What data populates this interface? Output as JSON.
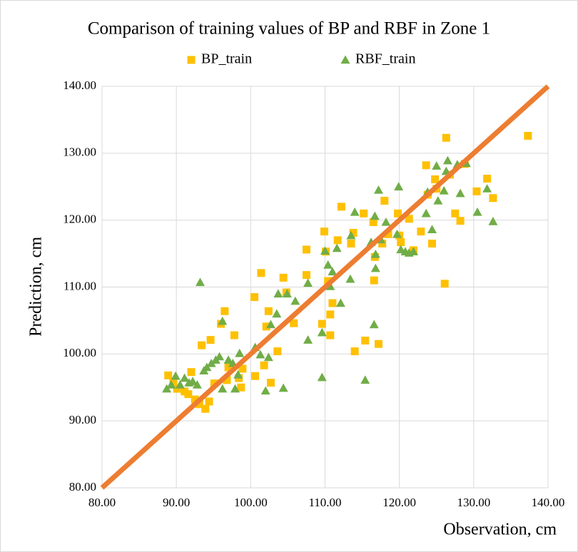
{
  "chart_data": {
    "type": "scatter",
    "title": "Comparison of training values of BP and RBF in Zone 1",
    "x_label": "Observation, cm",
    "y_label": "Prediction, cm",
    "xlim": [
      80,
      140
    ],
    "ylim": [
      80,
      140
    ],
    "xticks": [
      {
        "value": 80,
        "label": "80.00"
      },
      {
        "value": 90,
        "label": "90.00"
      },
      {
        "value": 100,
        "label": "100.00"
      },
      {
        "value": 110,
        "label": "110.00"
      },
      {
        "value": 120,
        "label": "120.00"
      },
      {
        "value": 130,
        "label": "130.00"
      },
      {
        "value": 140,
        "label": "140.00"
      }
    ],
    "yticks": [
      {
        "value": 80,
        "label": "80.00"
      },
      {
        "value": 90,
        "label": "90.00"
      },
      {
        "value": 100,
        "label": "100.00"
      },
      {
        "value": 110,
        "label": "110.00"
      },
      {
        "value": 120,
        "label": "120.00"
      },
      {
        "value": 130,
        "label": "130.00"
      },
      {
        "value": 140,
        "label": "140.00"
      }
    ],
    "grid": true,
    "legend": "top",
    "reference_line": {
      "color": "#ed7d31",
      "x": [
        80,
        140
      ],
      "values": [
        80,
        140
      ]
    },
    "series": [
      {
        "name": "BP_train",
        "color": "#ffc000",
        "marker": "square",
        "x": [
          88.9,
          89.6,
          90.1,
          91.1,
          91.6,
          92.0,
          92.5,
          93.1,
          93.4,
          93.9,
          94.4,
          94.6,
          95.1,
          96.0,
          96.5,
          96.8,
          97.0,
          97.8,
          98.4,
          98.7,
          98.9,
          100.5,
          100.6,
          101.4,
          101.8,
          102.1,
          102.4,
          102.7,
          103.6,
          104.4,
          104.8,
          105.8,
          107.5,
          107.5,
          109.6,
          109.9,
          110.1,
          110.4,
          110.7,
          111.0,
          110.7,
          111.7,
          112.2,
          113.5,
          113.8,
          114.0,
          115.4,
          115.2,
          116.6,
          116.7,
          116.5,
          117.2,
          117.7,
          118.0,
          118.5,
          119.8,
          120.0,
          120.2,
          121.3,
          121.9,
          122.9,
          123.6,
          123.8,
          124.4,
          124.8,
          125.0,
          126.1,
          126.3,
          126.8,
          127.5,
          128.2,
          128.8,
          130.4,
          131.8,
          132.6,
          137.3
        ],
        "values": [
          96.8,
          95.9,
          94.8,
          94.4,
          94.0,
          97.3,
          93.2,
          92.5,
          101.3,
          91.8,
          92.9,
          102.1,
          95.6,
          104.5,
          106.4,
          96.1,
          98.0,
          102.8,
          96.4,
          95.0,
          97.8,
          108.5,
          96.7,
          112.1,
          98.3,
          104.1,
          106.4,
          95.7,
          100.4,
          111.4,
          109.2,
          104.6,
          115.6,
          111.8,
          104.5,
          118.3,
          115.3,
          110.9,
          105.9,
          107.6,
          102.8,
          117.0,
          122.0,
          116.5,
          118.1,
          100.4,
          102.0,
          121.0,
          111.0,
          114.5,
          119.7,
          101.5,
          116.5,
          122.9,
          117.9,
          121.0,
          117.7,
          116.7,
          120.2,
          115.5,
          118.3,
          128.2,
          123.8,
          116.5,
          126.1,
          124.7,
          110.5,
          132.3,
          126.8,
          121.0,
          119.9,
          128.4,
          124.3,
          126.2,
          123.3,
          132.6
        ]
      },
      {
        "name": "RBF_train",
        "color": "#70ad47",
        "marker": "triangle",
        "x": [
          88.7,
          89.3,
          89.9,
          90.5,
          91.1,
          91.7,
          92.2,
          92.8,
          93.2,
          93.7,
          94.1,
          94.7,
          95.3,
          95.8,
          96.2,
          96.2,
          97.0,
          97.6,
          97.9,
          98.3,
          98.5,
          100.6,
          101.3,
          102.0,
          102.4,
          102.7,
          103.5,
          103.7,
          104.4,
          104.9,
          106.0,
          107.7,
          107.7,
          109.6,
          109.6,
          110.0,
          110.4,
          110.7,
          111.0,
          111.6,
          112.1,
          113.4,
          113.5,
          114.0,
          115.4,
          116.2,
          116.6,
          116.7,
          116.8,
          116.8,
          117.2,
          117.5,
          118.2,
          119.7,
          119.9,
          120.2,
          120.8,
          121.3,
          121.9,
          123.6,
          123.8,
          124.4,
          125.0,
          125.2,
          126.0,
          126.3,
          126.5,
          127.8,
          128.2,
          129.0,
          130.5,
          131.8,
          132.6
        ],
        "values": [
          94.8,
          95.4,
          96.7,
          95.4,
          96.4,
          95.7,
          95.9,
          95.4,
          110.7,
          97.5,
          98.0,
          98.6,
          99.1,
          99.6,
          94.8,
          104.9,
          99.1,
          98.6,
          94.8,
          96.9,
          100.1,
          101.0,
          99.9,
          94.5,
          99.5,
          104.4,
          106.0,
          109.0,
          94.9,
          109.0,
          107.9,
          110.6,
          102.1,
          96.5,
          103.2,
          115.4,
          113.3,
          110.1,
          112.3,
          115.8,
          107.6,
          111.2,
          117.7,
          121.2,
          96.1,
          116.7,
          104.4,
          120.6,
          114.9,
          112.8,
          124.5,
          117.1,
          119.7,
          117.9,
          125.0,
          115.6,
          115.3,
          115.1,
          115.3,
          121.0,
          124.2,
          118.6,
          128.1,
          122.9,
          124.4,
          127.3,
          128.9,
          128.3,
          124.0,
          128.5,
          121.2,
          124.7,
          119.8
        ]
      }
    ]
  }
}
